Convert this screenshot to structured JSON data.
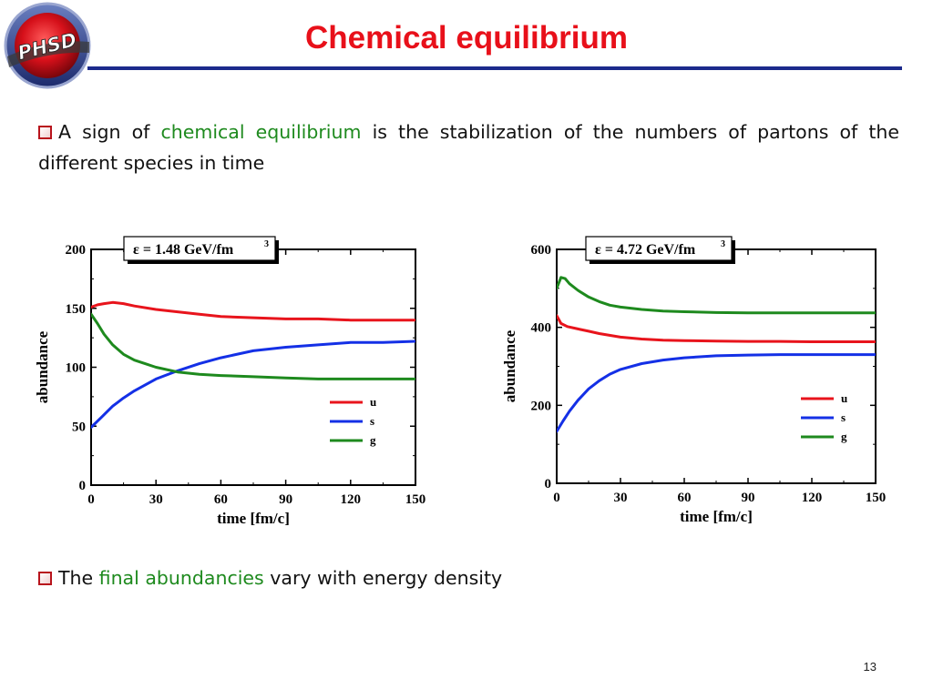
{
  "header": {
    "logo_text": "PHSD",
    "title": "Chemical equilibrium"
  },
  "bullets": {
    "b1_pre": "A sign of ",
    "b1_hl": "chemical equilibrium",
    "b1_post": " is the stabilization of the numbers of partons of the different species in time",
    "b2_pre": "The ",
    "b2_hl": "final abundancies",
    "b2_post": " vary with energy density"
  },
  "page_number": "13",
  "colors": {
    "title": "#e8101a",
    "rule": "#1c2a8c",
    "highlight": "#1e8a1e",
    "u": "#e8141c",
    "s": "#1430e6",
    "g": "#1e8a1e"
  },
  "chart_data": [
    {
      "type": "line",
      "annotation_label": "ε = 1.48 GeV/fm",
      "annotation_sup": "3",
      "xlabel": "time [fm/c]",
      "ylabel": "abundance",
      "xlim": [
        0,
        150
      ],
      "ylim": [
        0,
        200
      ],
      "xticks": [
        0,
        30,
        60,
        90,
        120,
        150
      ],
      "yticks": [
        0,
        50,
        100,
        150,
        200
      ],
      "legend_position": "lower-right",
      "series": [
        {
          "name": "u",
          "color": "#e8141c",
          "x": [
            0,
            3,
            6,
            10,
            15,
            20,
            30,
            40,
            50,
            60,
            75,
            90,
            105,
            120,
            135,
            150
          ],
          "y": [
            151,
            153,
            154,
            155,
            154,
            152,
            149,
            147,
            145,
            143,
            142,
            141,
            141,
            140,
            140,
            140
          ]
        },
        {
          "name": "s",
          "color": "#1430e6",
          "x": [
            0,
            5,
            10,
            15,
            20,
            30,
            40,
            50,
            60,
            75,
            90,
            105,
            120,
            135,
            150
          ],
          "y": [
            49,
            58,
            67,
            74,
            80,
            90,
            97,
            103,
            108,
            114,
            117,
            119,
            121,
            121,
            122
          ]
        },
        {
          "name": "g",
          "color": "#1e8a1e",
          "x": [
            0,
            3,
            6,
            10,
            15,
            20,
            25,
            30,
            40,
            50,
            60,
            75,
            90,
            105,
            120,
            135,
            150
          ],
          "y": [
            145,
            137,
            128,
            119,
            111,
            106,
            103,
            100,
            96,
            94,
            93,
            92,
            91,
            90,
            90,
            90,
            90
          ]
        }
      ]
    },
    {
      "type": "line",
      "annotation_label": "ε = 4.72 GeV/fm",
      "annotation_sup": "3",
      "xlabel": "time [fm/c]",
      "ylabel": "abundance",
      "xlim": [
        0,
        150
      ],
      "ylim": [
        0,
        600
      ],
      "xticks": [
        0,
        30,
        60,
        90,
        120,
        150
      ],
      "yticks": [
        0,
        200,
        400,
        600
      ],
      "legend_position": "lower-right",
      "series": [
        {
          "name": "u",
          "color": "#e8141c",
          "x": [
            0,
            2,
            5,
            10,
            15,
            20,
            30,
            40,
            50,
            60,
            75,
            90,
            105,
            120,
            135,
            150
          ],
          "y": [
            430,
            410,
            402,
            396,
            390,
            384,
            375,
            370,
            367,
            366,
            365,
            364,
            364,
            363,
            363,
            363
          ]
        },
        {
          "name": "s",
          "color": "#1430e6",
          "x": [
            0,
            3,
            6,
            10,
            15,
            20,
            25,
            30,
            40,
            50,
            60,
            75,
            90,
            105,
            120,
            135,
            150
          ],
          "y": [
            133,
            160,
            185,
            213,
            242,
            263,
            280,
            292,
            307,
            316,
            322,
            327,
            329,
            330,
            330,
            330,
            330
          ]
        },
        {
          "name": "g",
          "color": "#1e8a1e",
          "x": [
            0,
            2,
            4,
            6,
            10,
            15,
            20,
            25,
            30,
            40,
            50,
            60,
            75,
            90,
            105,
            120,
            135,
            150
          ],
          "y": [
            500,
            528,
            525,
            512,
            495,
            478,
            466,
            457,
            452,
            446,
            442,
            440,
            438,
            437,
            437,
            437,
            437,
            437
          ]
        }
      ]
    }
  ]
}
